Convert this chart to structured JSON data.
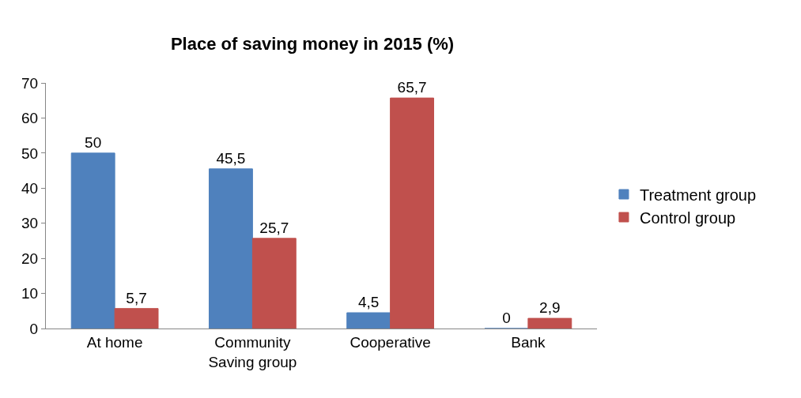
{
  "chart_data": {
    "type": "bar",
    "title": "Place of saving money in 2015 (%)",
    "categories": [
      "At home",
      "Community\nSaving group",
      "Cooperative",
      "Bank"
    ],
    "series": [
      {
        "name": "Treatment group",
        "color": "#4f81bd",
        "values": [
          50,
          45.5,
          4.5,
          0
        ],
        "value_labels": [
          "50",
          "45,5",
          "4,5",
          "0"
        ]
      },
      {
        "name": "Control group",
        "color": "#c0504d",
        "values": [
          5.7,
          25.7,
          65.7,
          2.9
        ],
        "value_labels": [
          "5,7",
          "25,7",
          "65,7",
          "2,9"
        ]
      }
    ],
    "ylim": [
      0,
      70
    ],
    "yticks": [
      0,
      10,
      20,
      30,
      40,
      50,
      60,
      70
    ],
    "grid": false,
    "legend": "right"
  }
}
